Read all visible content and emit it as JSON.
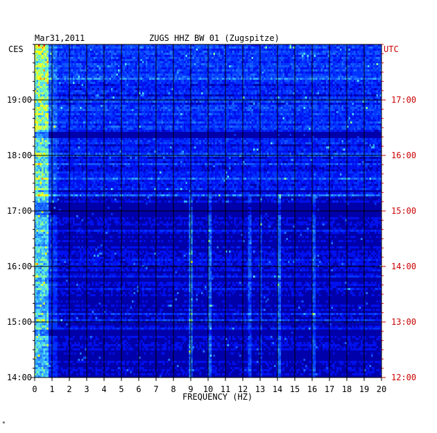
{
  "header": {
    "date": "Mar31,2011",
    "station": "ZUGS HHZ BW 01 (Zugspitze)"
  },
  "left_timezone": "CES",
  "right_timezone": "UTC",
  "footnote": "*",
  "colors": {
    "background": "#0000aa",
    "low": "#0000cc",
    "mid": "#2266ff",
    "high": "#ffff00",
    "peak": "#cc0000",
    "grid": "#000000",
    "utc_text": "#cc0000"
  },
  "chart_data": {
    "type": "heatmap",
    "title": "ZUGS HHZ BW 01 (Zugspitze)",
    "xlabel": "FREQUENCY (HZ)",
    "ylabel": "",
    "xlim": [
      0,
      20
    ],
    "x_ticks": [
      "0",
      "1",
      "2",
      "3",
      "4",
      "5",
      "6",
      "7",
      "8",
      "9",
      "10",
      "11",
      "12",
      "13",
      "14",
      "15",
      "16",
      "17",
      "18",
      "19",
      "20"
    ],
    "y_ticks_left": [
      "14:00",
      "15:00",
      "16:00",
      "17:00",
      "18:00",
      "19:00"
    ],
    "y_ticks_right": [
      "12:00",
      "13:00",
      "14:00",
      "15:00",
      "16:00",
      "17:00"
    ],
    "time_range_ces": [
      "14:00",
      "19:55"
    ],
    "features": [
      {
        "band_hz": [
          0.2,
          0.6
        ],
        "note": "strong energy through entire record"
      },
      {
        "band_hz": [
          8.9,
          9.1
        ],
        "note": "persistent narrow line 14:00-17:15"
      },
      {
        "band_hz": [
          9.9,
          10.2
        ],
        "note": "narrow line 14:00-17:00"
      },
      {
        "band_hz": [
          12.3,
          12.5
        ],
        "note": "narrow line"
      },
      {
        "band_hz": [
          13.9,
          14.2
        ],
        "note": "narrow line"
      },
      {
        "band_hz": [
          16.0,
          16.2
        ],
        "note": "narrow line"
      }
    ],
    "quiet_gaps_ces": [
      "18:07-18:10",
      "17:10-17:14",
      "14:45-14:47"
    ]
  }
}
